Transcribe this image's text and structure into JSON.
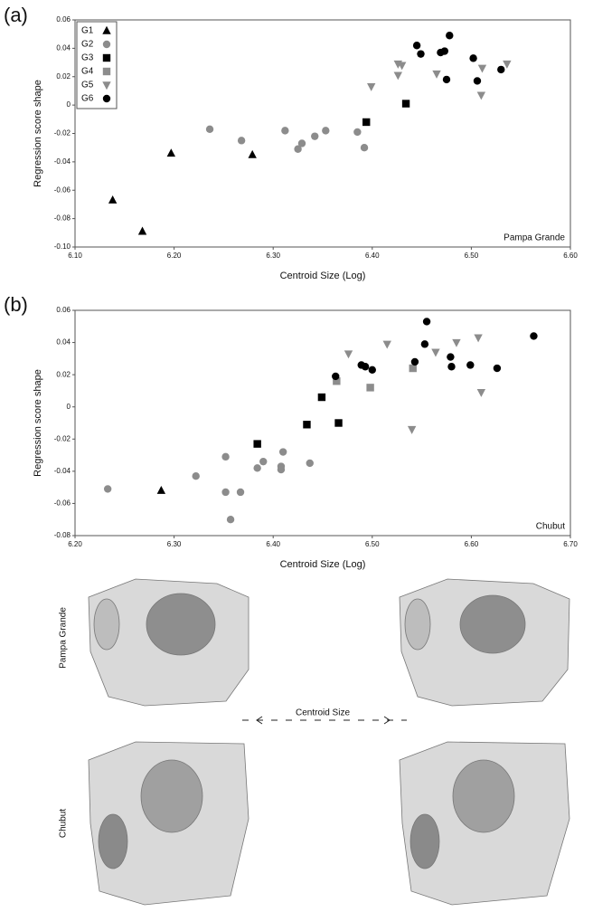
{
  "chart_data": [
    {
      "type": "scatter",
      "panel_label": "(a)",
      "annotation": "Pampa Grande",
      "xlabel": "Centroid Size (Log)",
      "ylabel": "Regression score shape",
      "xlim": [
        6.1,
        6.6
      ],
      "ylim": [
        -0.1,
        0.06
      ],
      "xticks": [
        {
          "value": 6.1,
          "label": "6.10"
        },
        {
          "value": 6.2,
          "label": "6.20"
        },
        {
          "value": 6.3,
          "label": "6.30"
        },
        {
          "value": 6.4,
          "label": "6.40"
        },
        {
          "value": 6.5,
          "label": "6.50"
        },
        {
          "value": 6.6,
          "label": "6.60"
        }
      ],
      "yticks": [
        {
          "value": -0.1,
          "label": "-0.10"
        },
        -0.08,
        -0.06,
        -0.04,
        -0.02,
        0,
        0.02,
        0.04,
        0.06
      ],
      "legend": "upper left",
      "series": [
        {
          "name": "G1",
          "color": "#000000",
          "marker": "triangle",
          "x": [
            6.138,
            6.168,
            6.197,
            6.279
          ],
          "values": [
            -0.067,
            -0.089,
            -0.034,
            -0.035
          ]
        },
        {
          "name": "G2",
          "color": "#8c8c8c",
          "marker": "circle",
          "x": [
            6.236,
            6.268,
            6.312,
            6.329,
            6.325,
            6.342,
            6.353,
            6.385,
            6.392
          ],
          "values": [
            -0.017,
            -0.025,
            -0.018,
            -0.027,
            -0.031,
            -0.022,
            -0.018,
            -0.019,
            -0.03
          ]
        },
        {
          "name": "G3",
          "color": "#000000",
          "marker": "square",
          "x": [
            6.394,
            6.434
          ],
          "values": [
            -0.012,
            0.001
          ]
        },
        {
          "name": "G4",
          "color": "#8c8c8c",
          "marker": "square",
          "x": [],
          "values": []
        },
        {
          "name": "G5",
          "color": "#8c8c8c",
          "marker": "triangle-down",
          "x": [
            6.399,
            6.426,
            6.43,
            6.426,
            6.465,
            6.511,
            6.51,
            6.536
          ],
          "values": [
            0.013,
            0.029,
            0.028,
            0.021,
            0.022,
            0.026,
            0.007,
            0.029
          ]
        },
        {
          "name": "G6",
          "color": "#000000",
          "marker": "circle",
          "x": [
            6.445,
            6.449,
            6.469,
            6.473,
            6.478,
            6.475,
            6.502,
            6.506,
            6.53
          ],
          "values": [
            0.042,
            0.036,
            0.037,
            0.038,
            0.049,
            0.018,
            0.033,
            0.017,
            0.025
          ]
        }
      ]
    },
    {
      "type": "scatter",
      "panel_label": "(b)",
      "annotation": "Chubut",
      "xlabel": "Centroid Size (Log)",
      "ylabel": "Regression score shape",
      "xlim": [
        6.2,
        6.7
      ],
      "ylim": [
        -0.08,
        0.06
      ],
      "xticks": [
        {
          "value": 6.2,
          "label": "6.20"
        },
        {
          "value": 6.3,
          "label": "6.30"
        },
        {
          "value": 6.4,
          "label": "6.40"
        },
        {
          "value": 6.5,
          "label": "6.50"
        },
        {
          "value": 6.6,
          "label": "6.60"
        },
        {
          "value": 6.7,
          "label": "6.70"
        }
      ],
      "yticks": [
        -0.08,
        -0.06,
        -0.04,
        -0.02,
        0,
        0.02,
        0.04,
        0.06
      ],
      "series": [
        {
          "color": "#000000",
          "marker": "triangle",
          "x": [
            6.287
          ],
          "values": [
            -0.052
          ]
        },
        {
          "color": "#8c8c8c",
          "marker": "circle",
          "x": [
            6.233,
            6.322,
            6.352,
            6.352,
            6.357,
            6.367,
            6.384,
            6.39,
            6.408,
            6.408,
            6.41,
            6.437
          ],
          "values": [
            -0.051,
            -0.043,
            -0.031,
            -0.053,
            -0.07,
            -0.053,
            -0.038,
            -0.034,
            -0.037,
            -0.039,
            -0.028,
            -0.035
          ]
        },
        {
          "color": "#000000",
          "marker": "square",
          "x": [
            6.384,
            6.434,
            6.449,
            6.466
          ],
          "values": [
            -0.023,
            -0.011,
            0.006,
            -0.01
          ]
        },
        {
          "color": "#8c8c8c",
          "marker": "square",
          "x": [
            6.464,
            6.498,
            6.541
          ],
          "values": [
            0.016,
            0.012,
            0.024
          ]
        },
        {
          "color": "#8c8c8c",
          "marker": "triangle-down",
          "x": [
            6.476,
            6.515,
            6.54,
            6.564,
            6.585,
            6.607,
            6.61
          ],
          "values": [
            0.033,
            0.039,
            -0.014,
            0.034,
            0.04,
            0.043,
            0.009
          ]
        },
        {
          "color": "#000000",
          "marker": "circle",
          "x": [
            6.463,
            6.489,
            6.493,
            6.5,
            6.543,
            6.553,
            6.555,
            6.579,
            6.58,
            6.599,
            6.626,
            6.663
          ],
          "values": [
            0.019,
            0.026,
            0.025,
            0.023,
            0.028,
            0.039,
            0.053,
            0.031,
            0.025,
            0.026,
            0.024,
            0.044
          ]
        }
      ]
    }
  ],
  "morphology": {
    "row_labels": [
      "Pampa Grande",
      "Chubut"
    ],
    "axis_label": "Centroid Size"
  }
}
